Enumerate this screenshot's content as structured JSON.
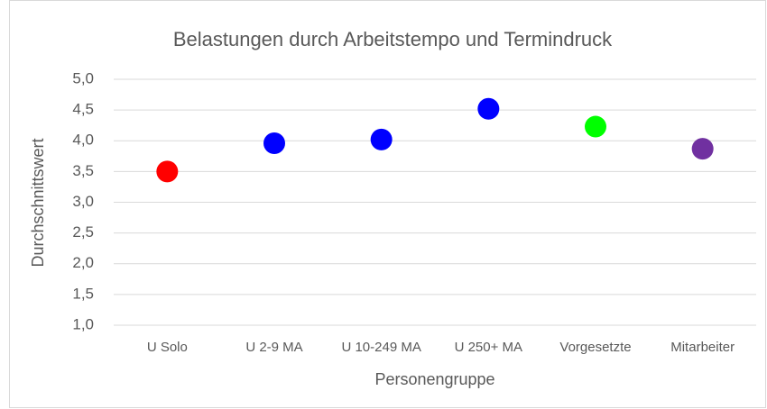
{
  "chart_data": {
    "type": "dot",
    "title": "Belastungen durch Arbeitstempo und Termindruck",
    "x_label": "Personengruppe",
    "y_label": "Durchschnittswert",
    "categories": [
      "U Solo",
      "U 2-9 MA",
      "U 10-249 MA",
      "U 250+ MA",
      "Vorgesetzte",
      "Mitarbeiter"
    ],
    "values": [
      3.5,
      3.96,
      4.02,
      4.52,
      4.23,
      3.87
    ],
    "colors": [
      "#ff0000",
      "#0000ff",
      "#0000ff",
      "#0000ff",
      "#00ff00",
      "#7030a0"
    ],
    "ylim": [
      1,
      5
    ],
    "yticks": [
      {
        "value": 1,
        "label": "1,0"
      },
      {
        "value": 1.5,
        "label": "1,5"
      },
      {
        "value": 2,
        "label": "2,0"
      },
      {
        "value": 2.5,
        "label": "2,5"
      },
      {
        "value": 3,
        "label": "3,0"
      },
      {
        "value": 3.5,
        "label": "3,5"
      },
      {
        "value": 4,
        "label": "4,0"
      },
      {
        "value": 4.5,
        "label": "4,5"
      },
      {
        "value": 5,
        "label": "5,0"
      }
    ],
    "grid": true
  }
}
